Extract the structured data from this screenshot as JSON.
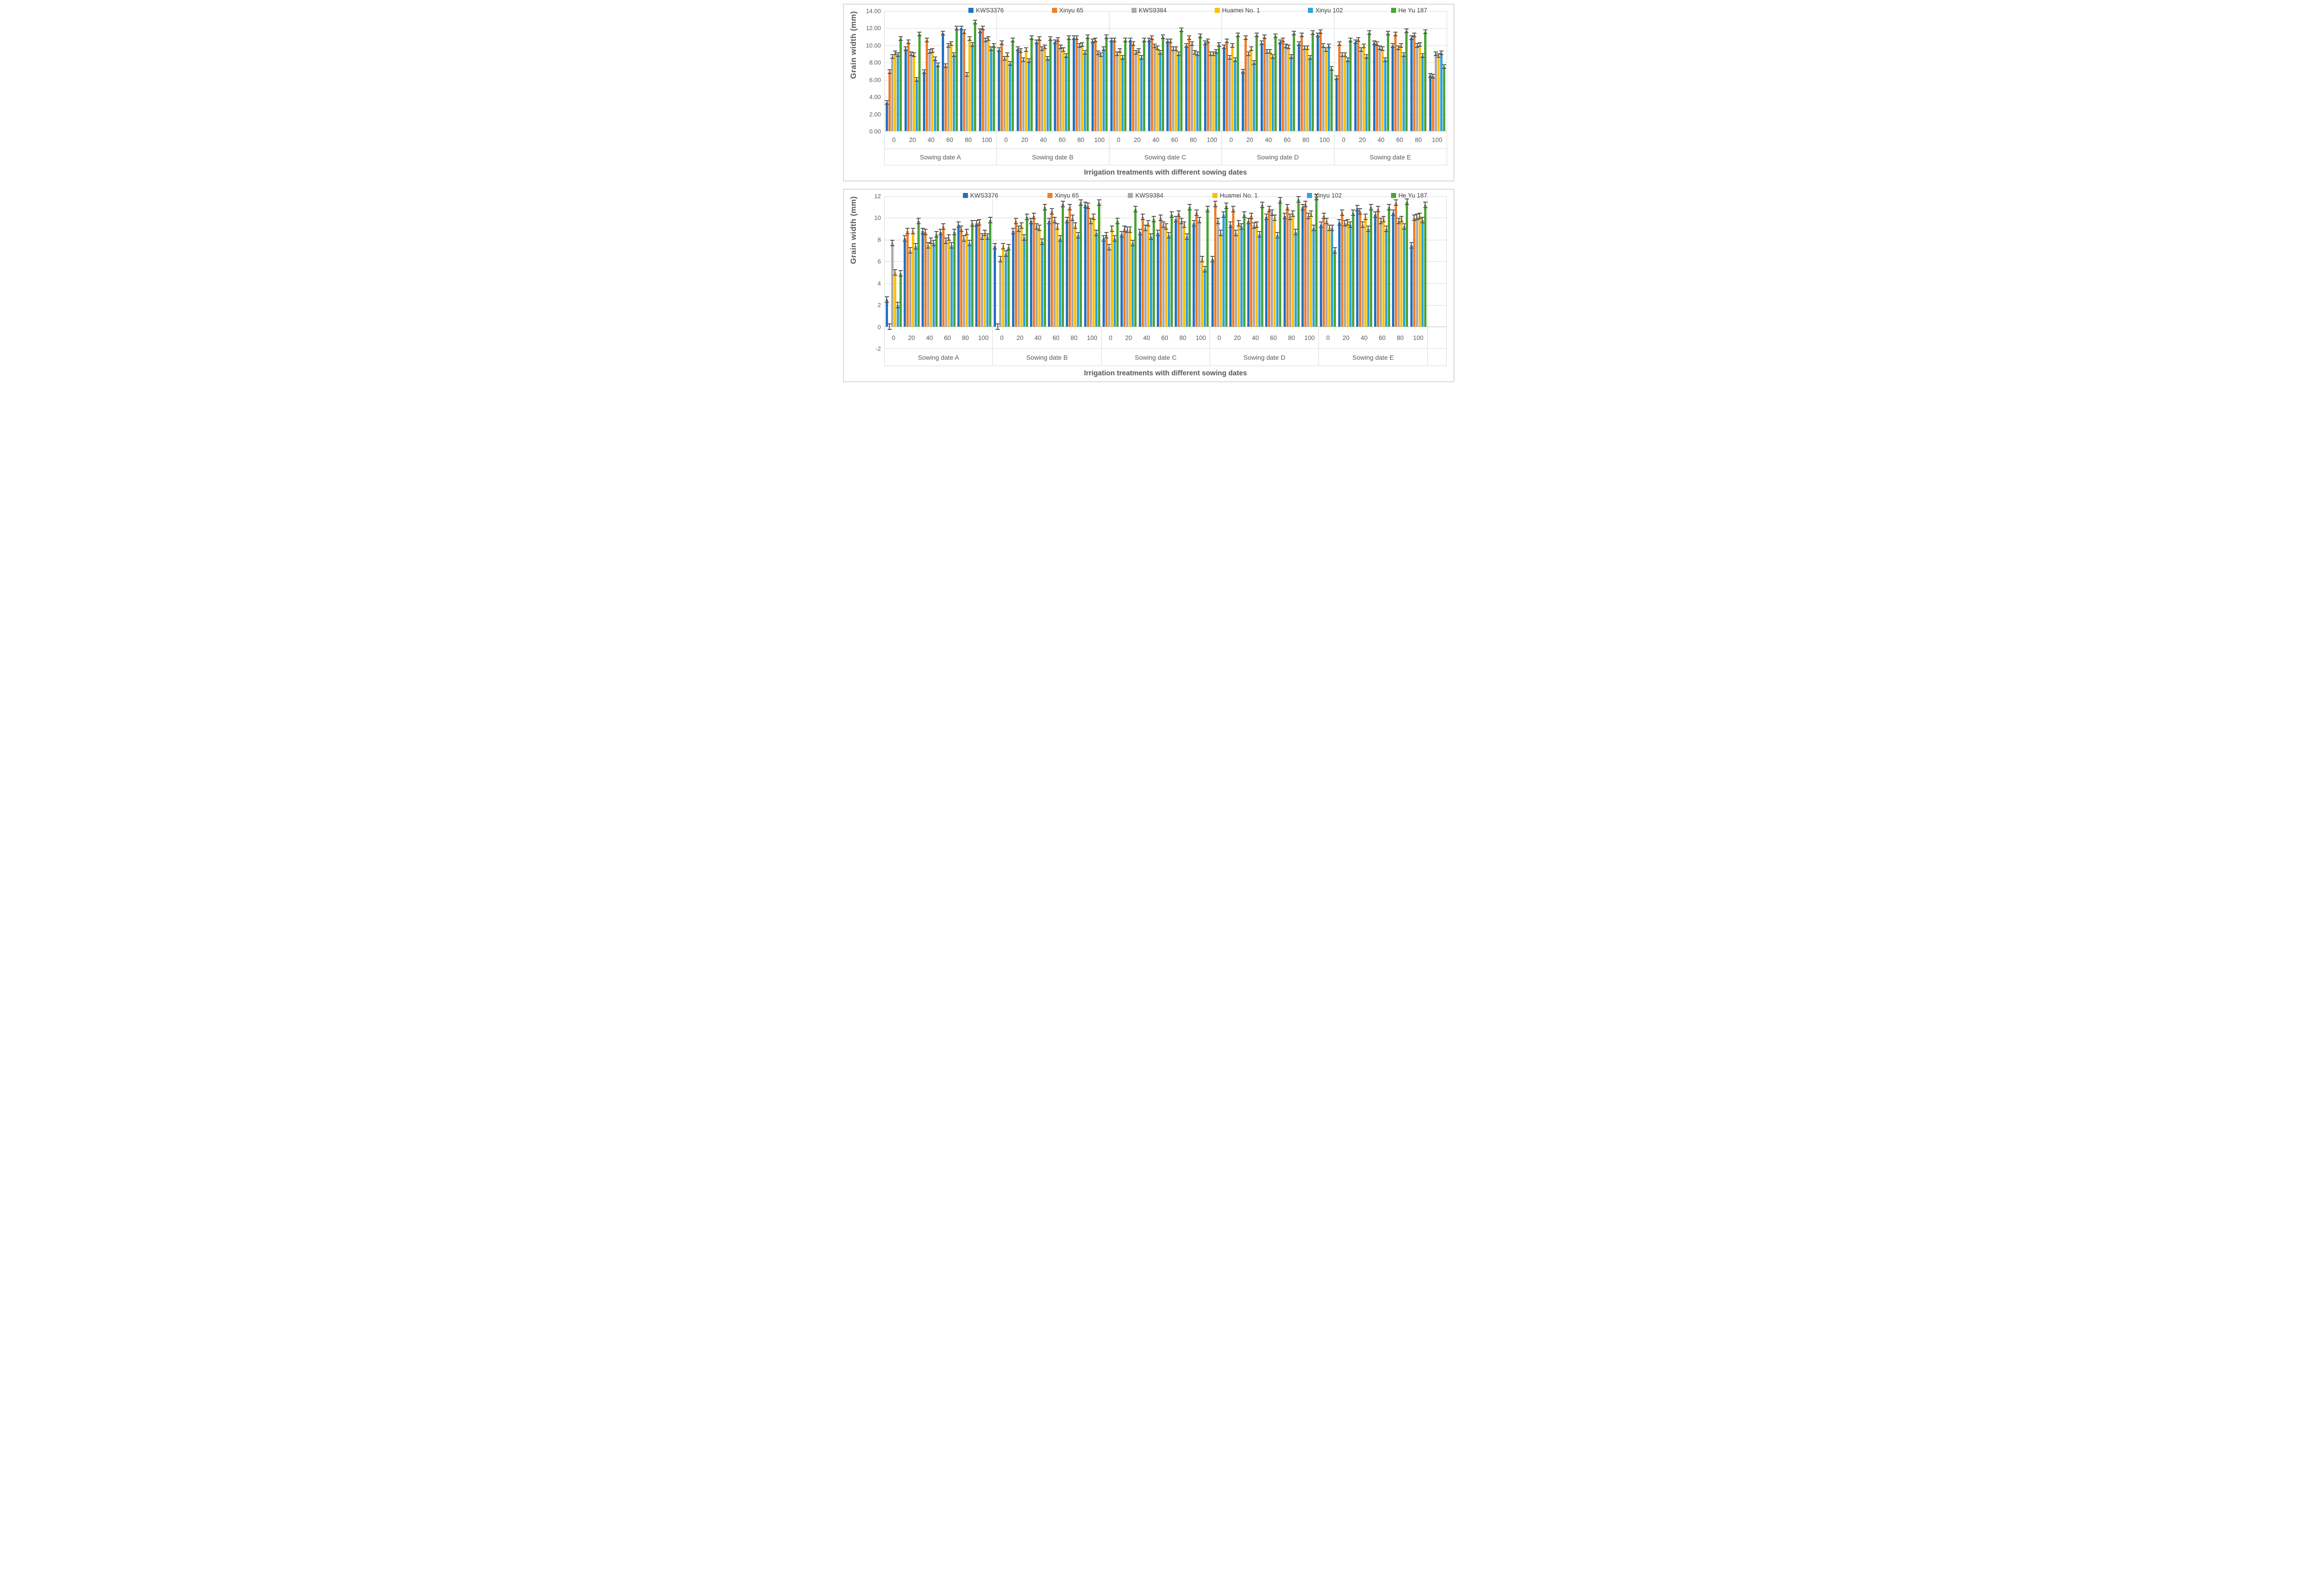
{
  "series": [
    {
      "name": "KWS3376",
      "color": "#1F72C4"
    },
    {
      "name": "Xinyu 65",
      "color": "#F07E27"
    },
    {
      "name": "KWS9384",
      "color": "#ABABAB"
    },
    {
      "name": "Huamei No. 1",
      "color": "#FFC000"
    },
    {
      "name": "Xinyu 102",
      "color": "#2EA3DC"
    },
    {
      "name": "He Yu 187",
      "color": "#4BA437"
    }
  ],
  "categories": [
    "0",
    "20",
    "40",
    "60",
    "80",
    "100"
  ],
  "chart_data": [
    {
      "type": "bar",
      "el": "chart-top",
      "title": "",
      "ylabel": "Grain width (mm)",
      "xlabel": "Irrigation treatments with different sowing dates",
      "ymin": 0,
      "ymax": 14,
      "ystep": 2,
      "yticks": [
        "14.00",
        "12.00",
        "10.00",
        "8.00",
        "6.00",
        "4.00",
        "2.00",
        "0.00"
      ],
      "grid": true,
      "legend_position": "top",
      "error_bar": 0.25,
      "extra_empty_slot": false,
      "panels": [
        {
          "label": "Sowing date A",
          "groups": [
            {
              "x": "0",
              "values": [
                3.3,
                6.9,
                8.7,
                9.1,
                8.9,
                10.8
              ]
            },
            {
              "x": "20",
              "values": [
                9.6,
                10.4,
                9.0,
                8.9,
                6.0,
                11.3
              ]
            },
            {
              "x": "40",
              "values": [
                6.9,
                10.6,
                9.3,
                9.4,
                8.4,
                7.7
              ]
            },
            {
              "x": "60",
              "values": [
                11.4,
                7.6,
                10.0,
                10.2,
                8.9,
                12.0
              ]
            },
            {
              "x": "80",
              "values": [
                12.0,
                11.6,
                6.6,
                10.8,
                10.1,
                12.7
              ]
            },
            {
              "x": "100",
              "values": [
                11.7,
                12.0,
                10.6,
                10.8,
                9.6,
                10.0
              ]
            }
          ]
        },
        {
          "label": "Sowing date B",
          "groups": [
            {
              "x": "0",
              "values": [
                9.5,
                10.3,
                8.5,
                8.9,
                7.9,
                10.6
              ]
            },
            {
              "x": "20",
              "values": [
                9.6,
                9.4,
                8.3,
                9.5,
                8.2,
                10.9
              ]
            },
            {
              "x": "40",
              "values": [
                10.4,
                10.8,
                9.6,
                9.8,
                8.5,
                10.8
              ]
            },
            {
              "x": "60",
              "values": [
                10.4,
                10.7,
                9.8,
                9.5,
                8.8,
                10.9
              ]
            },
            {
              "x": "80",
              "values": [
                10.9,
                10.9,
                10.0,
                10.1,
                9.2,
                11.0
              ]
            },
            {
              "x": "100",
              "values": [
                10.5,
                10.6,
                9.1,
                8.9,
                9.6,
                11.0
              ]
            }
          ]
        },
        {
          "label": "Sowing date C",
          "groups": [
            {
              "x": "0",
              "values": [
                10.6,
                10.6,
                9.0,
                9.4,
                8.6,
                10.6
              ]
            },
            {
              "x": "20",
              "values": [
                10.6,
                10.2,
                9.2,
                9.4,
                8.6,
                10.6
              ]
            },
            {
              "x": "40",
              "values": [
                10.6,
                10.9,
                9.9,
                9.7,
                9.2,
                11.0
              ]
            },
            {
              "x": "60",
              "values": [
                10.5,
                10.5,
                9.6,
                9.6,
                9.0,
                11.8
              ]
            },
            {
              "x": "80",
              "values": [
                10.0,
                10.9,
                10.2,
                9.2,
                9.0,
                11.1
              ]
            },
            {
              "x": "100",
              "values": [
                10.3,
                10.5,
                9.0,
                9.0,
                9.3,
                10.1
              ]
            }
          ]
        },
        {
          "label": "Sowing date D",
          "groups": [
            {
              "x": "0",
              "values": [
                9.8,
                10.5,
                8.6,
                10.0,
                8.3,
                11.2
              ]
            },
            {
              "x": "20",
              "values": [
                7.0,
                10.9,
                9.0,
                9.6,
                8.0,
                11.2
              ]
            },
            {
              "x": "40",
              "values": [
                10.3,
                11.0,
                9.3,
                9.3,
                8.7,
                11.1
              ]
            },
            {
              "x": "60",
              "values": [
                10.4,
                10.6,
                9.9,
                9.8,
                8.7,
                11.4
              ]
            },
            {
              "x": "80",
              "values": [
                10.2,
                11.2,
                9.7,
                9.7,
                8.6,
                11.5
              ]
            },
            {
              "x": "100",
              "values": [
                11.2,
                11.6,
                10.0,
                9.5,
                9.9,
                7.3
              ]
            }
          ]
        },
        {
          "label": "Sowing date E",
          "groups": [
            {
              "x": "0",
              "values": [
                6.2,
                10.2,
                8.9,
                8.9,
                8.3,
                10.6
              ]
            },
            {
              "x": "20",
              "values": [
                10.4,
                10.7,
                9.5,
                9.9,
                8.7,
                11.5
              ]
            },
            {
              "x": "40",
              "values": [
                10.3,
                10.2,
                9.7,
                9.6,
                8.3,
                11.4
              ]
            },
            {
              "x": "60",
              "values": [
                10.0,
                11.3,
                9.7,
                10.0,
                8.9,
                11.7
              ]
            },
            {
              "x": "80",
              "values": [
                10.9,
                11.2,
                10.0,
                10.1,
                8.8,
                11.6
              ]
            },
            {
              "x": "100",
              "values": [
                6.5,
                6.4,
                9.0,
                8.8,
                9.1,
                7.5
              ]
            }
          ]
        }
      ]
    },
    {
      "type": "bar",
      "el": "chart-bottom",
      "title": "",
      "ylabel": "Grain width (mm)",
      "xlabel": "Irrigation treatments with different sowing dates",
      "ymin": -2,
      "ymax": 12,
      "ystep": 2,
      "yticks": [
        "12",
        "10",
        "8",
        "6",
        "4",
        "2",
        "0",
        "-2"
      ],
      "grid": true,
      "legend_position": "top",
      "error_bar": 0.3,
      "extra_empty_slot": true,
      "panels": [
        {
          "label": "Sowing date A",
          "groups": [
            {
              "x": "0",
              "values": [
                2.5,
                0,
                7.7,
                5.0,
                2.0,
                4.9
              ]
            },
            {
              "x": "20",
              "values": [
                8.1,
                8.8,
                7.0,
                8.8,
                7.4,
                9.7
              ]
            },
            {
              "x": "40",
              "values": [
                8.8,
                8.7,
                7.5,
                7.9,
                7.7,
                8.5
              ]
            },
            {
              "x": "60",
              "values": [
                8.7,
                9.2,
                7.9,
                8.2,
                7.5,
                8.7
              ]
            },
            {
              "x": "80",
              "values": [
                9.4,
                9.0,
                8.1,
                8.7,
                7.7,
                9.5
              ]
            },
            {
              "x": "100",
              "values": [
                9.5,
                9.6,
                8.3,
                8.6,
                8.3,
                9.8
              ]
            }
          ]
        },
        {
          "label": "Sowing date B",
          "groups": [
            {
              "x": "0",
              "values": [
                7.4,
                0,
                6.2,
                7.4,
                6.7,
                7.3
              ]
            },
            {
              "x": "20",
              "values": [
                8.8,
                9.7,
                9.0,
                9.3,
                8.2,
                10.1
              ]
            },
            {
              "x": "40",
              "values": [
                9.7,
                10.2,
                9.2,
                9.1,
                7.8,
                11.0
              ]
            },
            {
              "x": "60",
              "values": [
                9.7,
                10.6,
                9.8,
                9.2,
                8.1,
                11.3
              ]
            },
            {
              "x": "80",
              "values": [
                9.8,
                11.0,
                10.0,
                9.3,
                8.4,
                11.4
              ]
            },
            {
              "x": "100",
              "values": [
                11.2,
                11.1,
                9.7,
                10.1,
                8.6,
                11.4
              ]
            }
          ]
        },
        {
          "label": "Sowing date C",
          "groups": [
            {
              "x": "0",
              "values": [
                8.1,
                8.4,
                7.3,
                9.0,
                8.1,
                9.7
              ]
            },
            {
              "x": "20",
              "values": [
                8.5,
                9.0,
                8.9,
                8.9,
                7.7,
                10.8
              ]
            },
            {
              "x": "40",
              "values": [
                8.7,
                10.1,
                9.1,
                9.5,
                8.3,
                9.9
              ]
            },
            {
              "x": "60",
              "values": [
                8.6,
                10.0,
                9.4,
                9.2,
                8.4,
                10.3
              ]
            },
            {
              "x": "80",
              "values": [
                9.9,
                10.4,
                9.7,
                9.4,
                8.3,
                11.0
              ]
            },
            {
              "x": "100",
              "values": [
                9.5,
                10.5,
                9.8,
                6.2,
                5.3,
                10.8
              ]
            }
          ]
        },
        {
          "label": "Sowing date D",
          "groups": [
            {
              "x": "0",
              "values": [
                6.2,
                11.3,
                9.7,
                8.6,
                10.3,
                11.1
              ]
            },
            {
              "x": "20",
              "values": [
                9.4,
                10.8,
                8.6,
                9.5,
                9.2,
                10.3
              ]
            },
            {
              "x": "40",
              "values": [
                9.7,
                10.2,
                9.3,
                9.4,
                8.5,
                11.2
              ]
            },
            {
              "x": "60",
              "values": [
                10.1,
                10.8,
                10.5,
                10.0,
                8.4,
                11.6
              ]
            },
            {
              "x": "80",
              "values": [
                10.2,
                11.0,
                10.1,
                10.4,
                8.7,
                11.7
              ]
            },
            {
              "x": "100",
              "values": [
                11.0,
                11.3,
                10.2,
                10.4,
                9.1,
                11.9
              ]
            }
          ]
        },
        {
          "label": "Sowing date E",
          "groups": [
            {
              "x": "0",
              "values": [
                9.4,
                10.2,
                9.7,
                9.1,
                9.1,
                7.0
              ]
            },
            {
              "x": "20",
              "values": [
                9.6,
                10.5,
                9.5,
                9.6,
                9.4,
                10.5
              ]
            },
            {
              "x": "40",
              "values": [
                10.9,
                10.6,
                9.4,
                10.1,
                9.0,
                11.0
              ]
            },
            {
              "x": "60",
              "values": [
                10.3,
                10.8,
                9.7,
                9.9,
                9.0,
                11.0
              ]
            },
            {
              "x": "80",
              "values": [
                10.5,
                11.4,
                9.7,
                9.9,
                9.2,
                11.5
              ]
            },
            {
              "x": "100",
              "values": [
                7.5,
                10.0,
                10.1,
                10.2,
                9.8,
                11.2
              ]
            }
          ]
        }
      ]
    }
  ]
}
